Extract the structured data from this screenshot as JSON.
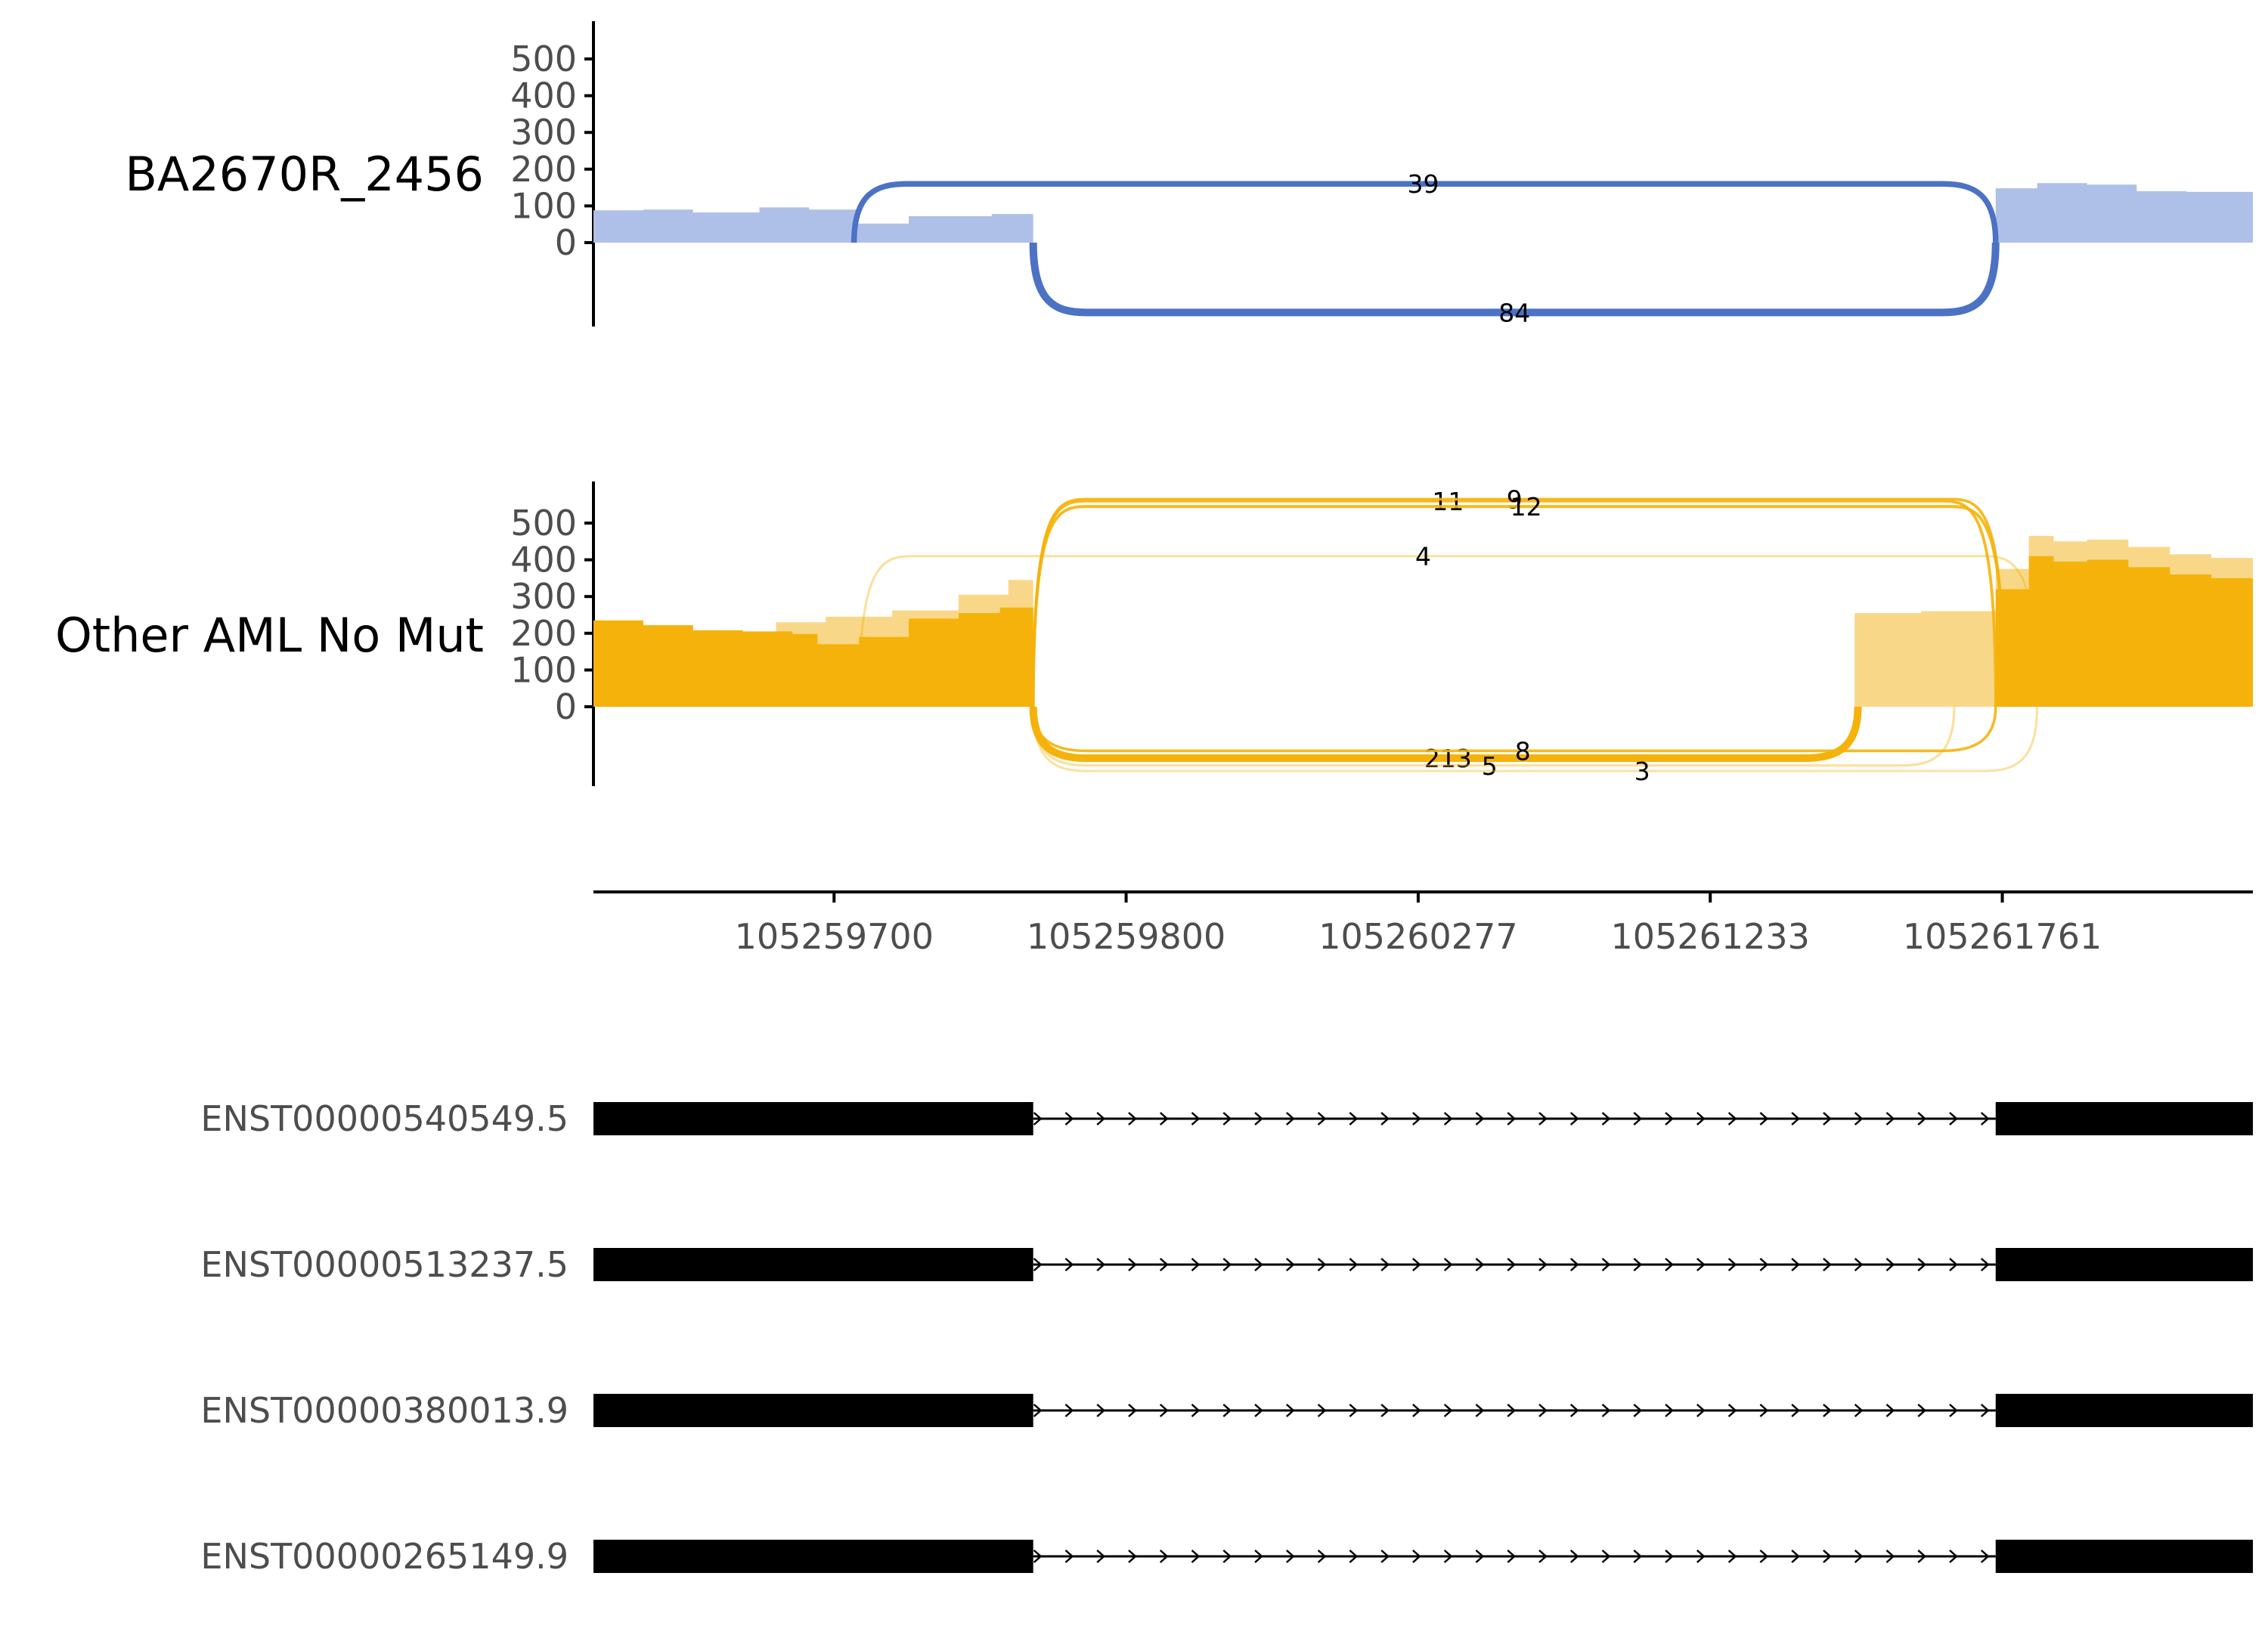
{
  "chart_data": {
    "type": "area",
    "title": "",
    "colors": {
      "sample_1": "#4c72c4",
      "sample_1_light": "#aec0e8",
      "sample_2": "#f5b20a",
      "sample_2_light": "#f8d888",
      "exon": "#000000"
    },
    "x_ticks": [
      "105259700",
      "105259800",
      "105260277",
      "105261233",
      "105261761"
    ],
    "y_ticks": [
      0,
      100,
      200,
      300,
      400,
      500
    ],
    "panels": [
      {
        "name": "BA2670R_2456",
        "color_key": "sample_1",
        "ylim": [
          -230,
          600
        ],
        "coverage": [
          {
            "x": 0.0,
            "y": 88
          },
          {
            "x": 0.03,
            "y": 90
          },
          {
            "x": 0.06,
            "y": 82
          },
          {
            "x": 0.1,
            "y": 96
          },
          {
            "x": 0.13,
            "y": 90
          },
          {
            "x": 0.16,
            "y": 78
          },
          {
            "x": 0.155,
            "y": 80
          },
          {
            "x": 0.158,
            "y": 52
          },
          {
            "x": 0.19,
            "y": 72
          },
          {
            "x": 0.24,
            "y": 78
          },
          {
            "x": 0.265,
            "y": 76
          }
        ],
        "coverage_light": [],
        "coverage_right": [
          {
            "x": 0.845,
            "y": 148
          },
          {
            "x": 0.87,
            "y": 162
          },
          {
            "x": 0.9,
            "y": 158
          },
          {
            "x": 0.93,
            "y": 140
          },
          {
            "x": 0.96,
            "y": 138
          },
          {
            "x": 1.0,
            "y": 136
          }
        ],
        "junctions": [
          {
            "label": "39",
            "count": 39,
            "side": "top",
            "start": 0.157,
            "end": 0.845,
            "depth": 160,
            "label_pos": 0.5
          },
          {
            "label": "84",
            "count": 84,
            "side": "bottom",
            "start": 0.265,
            "end": 0.845,
            "depth": -190,
            "label_pos": 0.555
          }
        ]
      },
      {
        "name": "Other AML No Mut",
        "color_key": "sample_2",
        "ylim": [
          -230,
          600
        ],
        "coverage": [
          {
            "x": 0.0,
            "y": 235
          },
          {
            "x": 0.03,
            "y": 222
          },
          {
            "x": 0.06,
            "y": 208
          },
          {
            "x": 0.09,
            "y": 205
          },
          {
            "x": 0.12,
            "y": 198
          },
          {
            "x": 0.135,
            "y": 170
          },
          {
            "x": 0.16,
            "y": 190
          },
          {
            "x": 0.19,
            "y": 240
          },
          {
            "x": 0.22,
            "y": 255
          },
          {
            "x": 0.245,
            "y": 270
          },
          {
            "x": 0.265,
            "y": 290
          }
        ],
        "coverage_light": [
          {
            "x": 0.11,
            "y": 230
          },
          {
            "x": 0.14,
            "y": 245
          },
          {
            "x": 0.18,
            "y": 262
          },
          {
            "x": 0.22,
            "y": 305
          },
          {
            "x": 0.25,
            "y": 345
          },
          {
            "x": 0.265,
            "y": 405
          }
        ],
        "coverage_mid": [
          {
            "x": 0.76,
            "y": 255
          },
          {
            "x": 0.8,
            "y": 260
          },
          {
            "x": 0.845,
            "y": 255
          }
        ],
        "coverage_right": [
          {
            "x": 0.845,
            "y": 320
          },
          {
            "x": 0.865,
            "y": 410
          },
          {
            "x": 0.88,
            "y": 395
          },
          {
            "x": 0.9,
            "y": 400
          },
          {
            "x": 0.925,
            "y": 380
          },
          {
            "x": 0.95,
            "y": 360
          },
          {
            "x": 0.975,
            "y": 350
          },
          {
            "x": 1.0,
            "y": 345
          }
        ],
        "junctions": [
          {
            "label": "11",
            "count": 11,
            "side": "top",
            "start": 0.265,
            "end": 0.845,
            "depth": 560,
            "label_pos": 0.515
          },
          {
            "label": "9",
            "count": 9,
            "side": "top",
            "start": 0.265,
            "end": 0.85,
            "depth": 565,
            "label_pos": 0.555
          },
          {
            "label": "12",
            "count": 12,
            "side": "top",
            "start": 0.265,
            "end": 0.85,
            "depth": 545,
            "label_pos": 0.562
          },
          {
            "label": "4",
            "count": 4,
            "side": "top",
            "start": 0.16,
            "end": 0.87,
            "depth": 410,
            "label_pos": 0.5
          },
          {
            "label": "213",
            "count": 213,
            "side": "bottom",
            "start": 0.265,
            "end": 0.762,
            "depth": -140,
            "label_pos": 0.515
          },
          {
            "label": "8",
            "count": 8,
            "side": "bottom",
            "start": 0.265,
            "end": 0.845,
            "depth": -120,
            "label_pos": 0.56
          },
          {
            "label": "5",
            "count": 5,
            "side": "bottom",
            "start": 0.265,
            "end": 0.82,
            "depth": -160,
            "label_pos": 0.54
          },
          {
            "label": "3",
            "count": 3,
            "side": "bottom",
            "start": 0.265,
            "end": 0.87,
            "depth": -175,
            "label_pos": 0.632
          }
        ]
      }
    ],
    "transcripts": [
      {
        "name": "ENST00000540549.5",
        "exons": [
          [
            0.0,
            0.265
          ],
          [
            0.845,
            1.0
          ]
        ]
      },
      {
        "name": "ENST00000513237.5",
        "exons": [
          [
            0.0,
            0.265
          ],
          [
            0.845,
            1.0
          ]
        ]
      },
      {
        "name": "ENST00000380013.9",
        "exons": [
          [
            0.0,
            0.265
          ],
          [
            0.845,
            1.0
          ]
        ]
      },
      {
        "name": "ENST00000265149.9",
        "exons": [
          [
            0.0,
            0.265
          ],
          [
            0.845,
            1.0
          ]
        ]
      }
    ]
  }
}
